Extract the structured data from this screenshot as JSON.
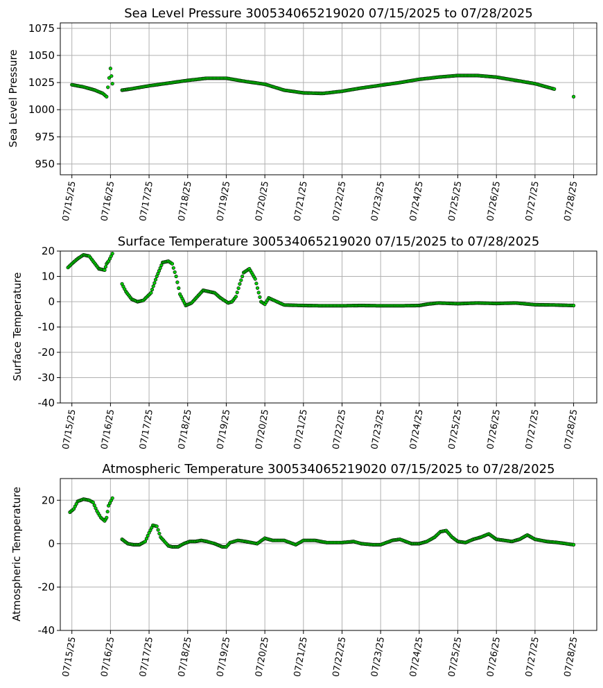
{
  "chart_data": [
    {
      "type": "scatter",
      "title": "Sea Level Pressure 300534065219020  07/15/2025 to 07/28/2025",
      "xlabel": "",
      "ylabel": "Sea Level Pressure",
      "x_ticks": [
        "07/15/25",
        "07/16/25",
        "07/17/25",
        "07/18/25",
        "07/19/25",
        "07/20/25",
        "07/21/25",
        "07/22/25",
        "07/23/25",
        "07/24/25",
        "07/25/25",
        "07/26/25",
        "07/27/25",
        "07/28/25"
      ],
      "xlim": [
        -0.3,
        13.6
      ],
      "y_ticks": [
        950,
        975,
        1000,
        1025,
        1050,
        1075
      ],
      "ylim": [
        940,
        1080
      ],
      "grid": true,
      "marker_fill": "#00cc00",
      "marker_edge": "#000000",
      "series": [
        {
          "x": [
            0.0,
            0.3,
            0.6,
            0.8,
            0.9,
            1.0,
            1.05,
            1.3,
            1.5,
            2.0,
            2.5,
            3.0,
            3.5,
            4.0,
            4.5,
            5.0,
            5.5,
            6.0,
            6.5,
            7.0,
            7.5,
            8.0,
            8.5,
            9.0,
            9.5,
            10.0,
            10.5,
            11.0,
            11.5,
            12.0,
            12.5,
            13.0
          ],
          "values": [
            1023,
            1021,
            1018,
            1015,
            1012,
            1038,
            1024,
            1018,
            1019,
            1022,
            1024.5,
            1027,
            1029,
            1029,
            1026,
            1023.5,
            1018,
            1015.5,
            1015,
            1017,
            1020,
            1022.5,
            1025,
            1028,
            1030,
            1031.5,
            1031.5,
            1030,
            1027,
            1024,
            1019,
            1012
          ]
        }
      ]
    },
    {
      "type": "scatter",
      "title": "Surface Temperature 300534065219020  07/15/2025 to 07/28/2025",
      "xlabel": "",
      "ylabel": "Surface Temperature",
      "x_ticks": [
        "07/15/25",
        "07/16/25",
        "07/17/25",
        "07/18/25",
        "07/19/25",
        "07/20/25",
        "07/21/25",
        "07/22/25",
        "07/23/25",
        "07/24/25",
        "07/25/25",
        "07/26/25",
        "07/27/25",
        "07/28/25"
      ],
      "xlim": [
        -0.3,
        13.6
      ],
      "y_ticks": [
        -40,
        -30,
        -20,
        -10,
        0,
        10,
        20
      ],
      "ylim": [
        -40,
        20
      ],
      "grid": true,
      "marker_fill": "#00cc00",
      "marker_edge": "#000000",
      "series": [
        {
          "x": [
            -0.1,
            0.0,
            0.15,
            0.3,
            0.45,
            0.55,
            0.7,
            0.85,
            0.9,
            0.95,
            1.05,
            1.3,
            1.4,
            1.55,
            1.7,
            1.85,
            1.95,
            2.05,
            2.2,
            2.35,
            2.5,
            2.6,
            2.7,
            2.8,
            2.95,
            3.1,
            3.25,
            3.4,
            3.55,
            3.7,
            3.85,
            3.95,
            4.05,
            4.15,
            4.25,
            4.35,
            4.45,
            4.6,
            4.75,
            4.9,
            5.0,
            5.1,
            5.5,
            6.0,
            6.5,
            7.0,
            7.5,
            8.0,
            8.5,
            9.0,
            9.2,
            9.5,
            10.0,
            10.5,
            11.0,
            11.5,
            12.0,
            12.5,
            13.0
          ],
          "values": [
            13.5,
            15,
            17,
            18.5,
            18,
            16,
            13,
            12.5,
            15,
            16,
            19,
            7,
            4,
            1,
            0,
            0.5,
            2,
            3.5,
            10,
            15.5,
            16,
            15,
            10,
            3,
            -1.5,
            -0.5,
            2,
            4.5,
            4,
            3.5,
            1.5,
            0.5,
            -0.5,
            0,
            2,
            7,
            11.5,
            13,
            9,
            0,
            -1,
            1.5,
            -1.3,
            -1.5,
            -1.6,
            -1.6,
            -1.5,
            -1.6,
            -1.6,
            -1.5,
            -1,
            -0.5,
            -0.8,
            -0.5,
            -0.7,
            -0.5,
            -1.2,
            -1.3,
            -1.5
          ]
        }
      ]
    },
    {
      "type": "scatter",
      "title": "Atmospheric Temperature 300534065219020  07/15/2025 to 07/28/2025",
      "xlabel": "",
      "ylabel": "Atmospheric Temperature",
      "x_ticks": [
        "07/15/25",
        "07/16/25",
        "07/17/25",
        "07/18/25",
        "07/19/25",
        "07/20/25",
        "07/21/25",
        "07/22/25",
        "07/23/25",
        "07/24/25",
        "07/25/25",
        "07/26/25",
        "07/27/25",
        "07/28/25"
      ],
      "xlim": [
        -0.3,
        13.6
      ],
      "y_ticks": [
        -40,
        -20,
        0,
        20
      ],
      "ylim": [
        -40,
        30
      ],
      "grid": true,
      "marker_fill": "#00cc00",
      "marker_edge": "#000000",
      "series": [
        {
          "x": [
            -0.05,
            0.05,
            0.15,
            0.3,
            0.45,
            0.55,
            0.65,
            0.75,
            0.85,
            0.9,
            0.95,
            1.05,
            1.3,
            1.45,
            1.6,
            1.75,
            1.9,
            2.0,
            2.1,
            2.2,
            2.3,
            2.4,
            2.5,
            2.6,
            2.75,
            2.9,
            3.05,
            3.2,
            3.35,
            3.5,
            3.7,
            3.9,
            4.0,
            4.1,
            4.3,
            4.5,
            4.8,
            5.0,
            5.2,
            5.5,
            5.8,
            6.0,
            6.3,
            6.6,
            7.0,
            7.3,
            7.5,
            7.8,
            8.0,
            8.3,
            8.5,
            8.8,
            9.0,
            9.2,
            9.4,
            9.55,
            9.7,
            9.85,
            10.0,
            10.2,
            10.4,
            10.6,
            10.8,
            11.0,
            11.2,
            11.4,
            11.6,
            11.8,
            12.0,
            12.3,
            12.6,
            13.0
          ],
          "values": [
            14.5,
            16,
            19.5,
            20.5,
            20,
            19,
            15,
            12,
            10.5,
            12,
            17.5,
            21,
            2,
            0,
            -0.5,
            -0.5,
            1,
            5,
            8.5,
            8,
            3,
            1,
            -1,
            -1.5,
            -1.5,
            0,
            1,
            1,
            1.5,
            1,
            0,
            -1.5,
            -1.5,
            0.5,
            1.5,
            1,
            0,
            2.5,
            1.5,
            1.5,
            -0.5,
            1.5,
            1.5,
            0.5,
            0.5,
            1,
            0,
            -0.5,
            -0.5,
            1.5,
            2,
            0,
            0,
            1,
            3,
            5.5,
            6,
            3,
            1,
            0.5,
            2,
            3,
            4.5,
            2,
            1.5,
            1,
            2,
            4,
            2,
            1,
            0.5,
            -0.5
          ]
        }
      ]
    }
  ]
}
